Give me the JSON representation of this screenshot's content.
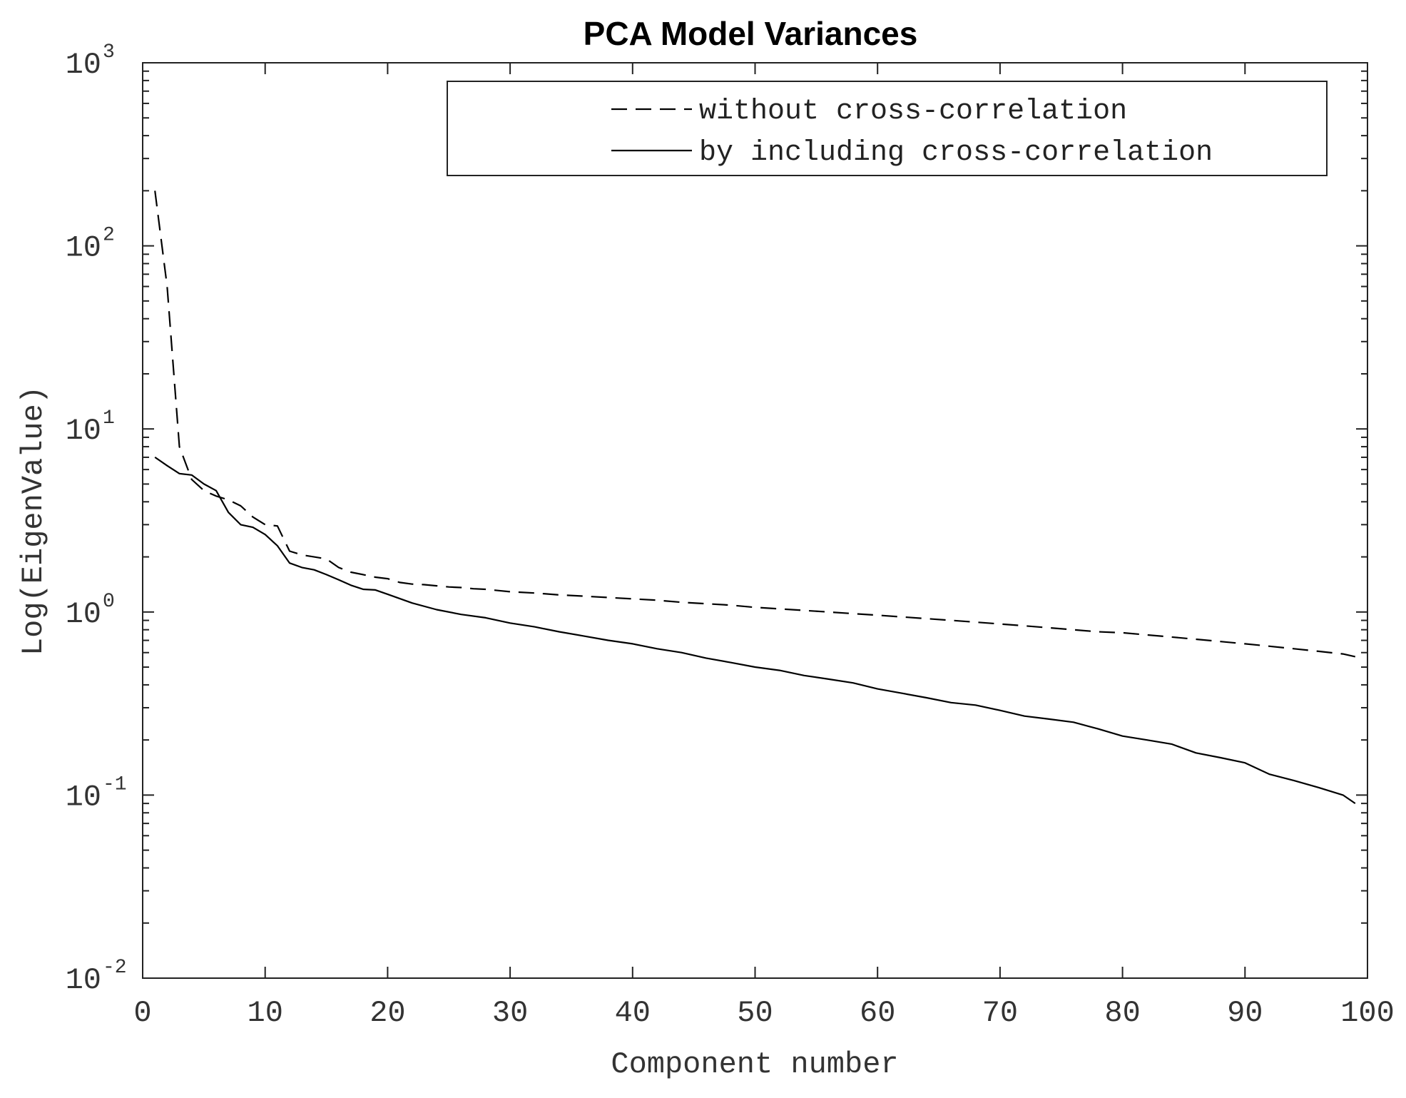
{
  "chart_data": {
    "type": "line",
    "title": "PCA Model Variances",
    "xlabel": "Component number",
    "ylabel": "Log(EigenValue)",
    "yscale": "log",
    "xlim": [
      0,
      100
    ],
    "ylim_exp": [
      -2,
      3
    ],
    "x_ticks": [
      0,
      10,
      20,
      30,
      40,
      50,
      60,
      70,
      80,
      90,
      100
    ],
    "x_tick_labels": [
      "0",
      "10",
      "20",
      "30",
      "40",
      "50",
      "60",
      "70",
      "80",
      "90",
      "100"
    ],
    "y_ticks": [
      {
        "base": "10",
        "exp": "-2",
        "value": -2
      },
      {
        "base": "10",
        "exp": "-1",
        "value": -1
      },
      {
        "base": "10",
        "exp": "0",
        "value": 0
      },
      {
        "base": "10",
        "exp": "1",
        "value": 1
      },
      {
        "base": "10",
        "exp": "2",
        "value": 2
      },
      {
        "base": "10",
        "exp": "3",
        "value": 3
      }
    ],
    "legend": {
      "location": "top-right",
      "entries": [
        "without cross-correlation",
        "by including cross-correlation"
      ]
    },
    "series": [
      {
        "name": "without cross-correlation",
        "style": "dashed",
        "x": [
          1,
          2,
          3,
          4,
          5,
          6,
          7,
          8,
          9,
          10,
          11,
          12,
          13,
          14,
          15,
          16,
          17,
          18,
          19,
          20,
          21,
          22,
          23,
          24,
          25,
          26,
          27,
          28,
          29,
          30,
          32,
          34,
          36,
          38,
          40,
          42,
          44,
          46,
          48,
          50,
          52,
          54,
          56,
          58,
          60,
          62,
          64,
          66,
          68,
          70,
          72,
          74,
          76,
          78,
          80,
          82,
          84,
          86,
          88,
          90,
          92,
          94,
          96,
          98,
          99
        ],
        "y": [
          200,
          60,
          8,
          5.3,
          4.6,
          4.3,
          4.1,
          3.8,
          3.3,
          3.0,
          2.95,
          2.15,
          2.05,
          2.0,
          1.95,
          1.75,
          1.65,
          1.6,
          1.55,
          1.52,
          1.45,
          1.42,
          1.41,
          1.39,
          1.37,
          1.36,
          1.34,
          1.33,
          1.31,
          1.29,
          1.27,
          1.24,
          1.22,
          1.2,
          1.18,
          1.16,
          1.13,
          1.11,
          1.09,
          1.06,
          1.04,
          1.02,
          1.0,
          0.98,
          0.96,
          0.94,
          0.92,
          0.9,
          0.88,
          0.86,
          0.84,
          0.82,
          0.8,
          0.78,
          0.77,
          0.75,
          0.73,
          0.71,
          0.69,
          0.67,
          0.65,
          0.63,
          0.61,
          0.59,
          0.57
        ]
      },
      {
        "name": "by including cross-correlation",
        "style": "solid",
        "x": [
          1,
          2,
          3,
          4,
          5,
          6,
          7,
          8,
          9,
          10,
          11,
          12,
          13,
          14,
          15,
          16,
          17,
          18,
          19,
          20,
          22,
          24,
          26,
          28,
          30,
          32,
          34,
          36,
          38,
          40,
          42,
          44,
          46,
          48,
          50,
          52,
          54,
          56,
          58,
          60,
          62,
          64,
          66,
          68,
          70,
          72,
          74,
          76,
          78,
          80,
          82,
          84,
          86,
          88,
          90,
          92,
          94,
          96,
          98,
          99
        ],
        "y": [
          7.0,
          6.3,
          5.7,
          5.6,
          5.0,
          4.6,
          3.5,
          3.0,
          2.9,
          2.65,
          2.3,
          1.85,
          1.75,
          1.7,
          1.6,
          1.5,
          1.4,
          1.33,
          1.32,
          1.25,
          1.12,
          1.03,
          0.97,
          0.93,
          0.87,
          0.83,
          0.78,
          0.74,
          0.7,
          0.67,
          0.63,
          0.6,
          0.56,
          0.53,
          0.5,
          0.48,
          0.45,
          0.43,
          0.41,
          0.38,
          0.36,
          0.34,
          0.32,
          0.31,
          0.29,
          0.27,
          0.26,
          0.25,
          0.23,
          0.21,
          0.2,
          0.19,
          0.17,
          0.16,
          0.15,
          0.13,
          0.12,
          0.11,
          0.1,
          0.09
        ]
      }
    ]
  }
}
